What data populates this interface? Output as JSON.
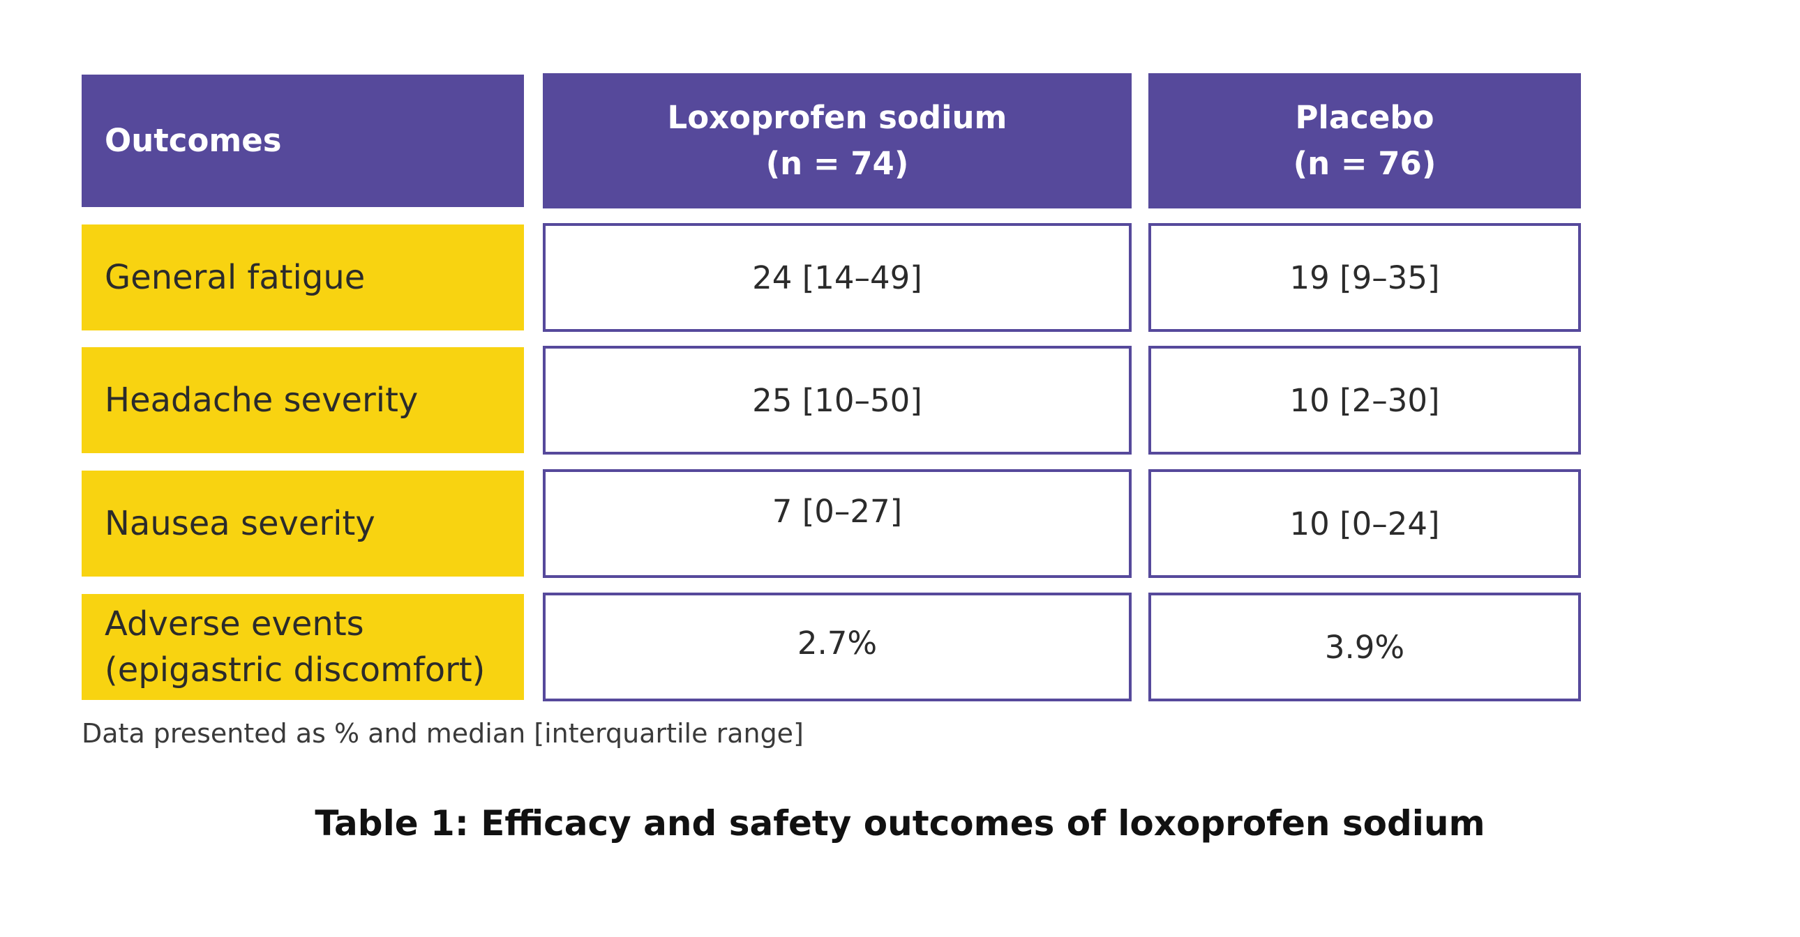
{
  "chart_data": {
    "type": "table",
    "columns": [
      "Outcomes",
      "Loxoprofen sodium\n(n = 74)",
      "Placebo\n(n = 76)"
    ],
    "header": {
      "outcomes": "Outcomes",
      "loxoprofen_name": "Loxoprofen sodium",
      "loxoprofen_n": "(n = 74)",
      "placebo_name": "Placebo",
      "placebo_n": "(n = 76)"
    },
    "rows": [
      {
        "outcome": "General fatigue",
        "loxoprofen": "24 [14–49]",
        "placebo": "19 [9–35]"
      },
      {
        "outcome": "Headache severity",
        "loxoprofen": "25 [10–50]",
        "placebo": "10 [2–30]"
      },
      {
        "outcome": "Nausea severity",
        "loxoprofen": "7 [0–27]",
        "placebo": "10 [0–24]"
      },
      {
        "outcome": "Adverse events\n(epigastric discomfort)",
        "outcome_line1": "Adverse events",
        "outcome_line2": "(epigastric discomfort)",
        "loxoprofen": "2.7%",
        "placebo": "3.9%"
      }
    ],
    "note": "Data presented as % and median [interquartile range]",
    "title": "Table 1: Efficacy and safety outcomes of loxoprofen sodium"
  },
  "colors": {
    "header_bg": "#56499b",
    "label_bg": "#f8d311",
    "border": "#56499b"
  }
}
